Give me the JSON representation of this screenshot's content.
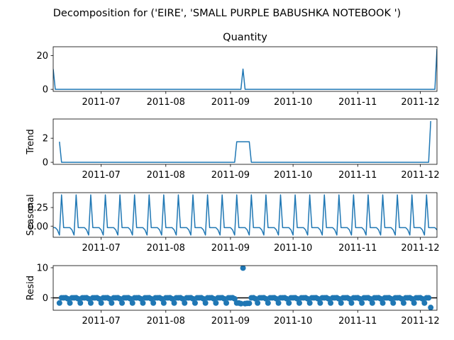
{
  "figure": {
    "title": "Decomposition for ('EIRE', 'SMALL PURPLE BABUSHKA NOTEBOOK ')"
  },
  "chart_data": [
    {
      "type": "line",
      "title": "Quantity",
      "ylabel": "",
      "xlim": [
        "2011-06-08",
        "2011-12-09"
      ],
      "ylim": [
        -1.2,
        25.2
      ],
      "yticks": [
        0,
        20
      ],
      "xticks": [
        "2011-07",
        "2011-08",
        "2011-09",
        "2011-10",
        "2011-11",
        "2011-12"
      ],
      "color": "#1f77b4",
      "grid": false,
      "series": [
        {
          "points": [
            [
              "2011-06-08",
              12
            ],
            [
              "2011-06-09",
              0
            ],
            [
              "2011-09-06",
              0
            ],
            [
              "2011-09-07",
              12
            ],
            [
              "2011-09-08",
              0
            ],
            [
              "2011-12-08",
              0
            ],
            [
              "2011-12-09",
              24
            ]
          ]
        }
      ]
    },
    {
      "type": "line",
      "title": "",
      "ylabel": "Trend",
      "xlim": [
        "2011-06-08",
        "2011-12-09"
      ],
      "ylim": [
        -0.17,
        3.6
      ],
      "yticks": [
        0,
        2
      ],
      "xticks": [
        "2011-07",
        "2011-08",
        "2011-09",
        "2011-10",
        "2011-11",
        "2011-12"
      ],
      "color": "#1f77b4",
      "grid": false,
      "series": [
        {
          "points": [
            [
              "2011-06-11",
              1.71
            ],
            [
              "2011-06-12",
              0
            ],
            [
              "2011-09-03",
              0
            ],
            [
              "2011-09-04",
              1.71
            ],
            [
              "2011-09-10",
              1.71
            ],
            [
              "2011-09-11",
              0
            ],
            [
              "2011-12-05",
              0
            ],
            [
              "2011-12-06",
              3.43
            ]
          ]
        }
      ]
    },
    {
      "type": "line",
      "title": "",
      "ylabel": "Seasonal",
      "xlim": [
        "2011-06-08",
        "2011-12-09"
      ],
      "ylim": [
        -0.15,
        0.45
      ],
      "yticks": [
        0.0,
        0.25
      ],
      "xticks": [
        "2011-07",
        "2011-08",
        "2011-09",
        "2011-10",
        "2011-11",
        "2011-12"
      ],
      "color": "#1f77b4",
      "grid": false,
      "seasonal_pattern": [
        -0.02,
        -0.02,
        -0.05,
        -0.12,
        0.42,
        -0.02,
        -0.02
      ],
      "seasonal_start": "2011-06-08",
      "seasonal_end": "2011-12-09"
    },
    {
      "type": "scatter",
      "title": "",
      "ylabel": "Resid",
      "xlim": [
        "2011-06-08",
        "2011-12-09"
      ],
      "ylim": [
        -4.1,
        10.7
      ],
      "yticks": [
        0,
        10
      ],
      "xticks": [
        "2011-07",
        "2011-08",
        "2011-09",
        "2011-10",
        "2011-11",
        "2011-12"
      ],
      "color": "#1f77b4",
      "zero_line": true,
      "grid": false,
      "baseline_values": [
        -1.7,
        0.02,
        0.02,
        0.05,
        -0.3
      ],
      "baseline_start": "2011-06-11",
      "baseline_end": "2011-12-06",
      "outliers": [
        [
          "2011-09-04",
          -1.7
        ],
        [
          "2011-09-05",
          -1.7
        ],
        [
          "2011-09-06",
          -1.9
        ],
        [
          "2011-09-07",
          9.9
        ],
        [
          "2011-09-08",
          -1.9
        ],
        [
          "2011-09-09",
          -1.8
        ],
        [
          "2011-09-10",
          -1.8
        ],
        [
          "2011-12-06",
          -3.2
        ]
      ]
    }
  ]
}
